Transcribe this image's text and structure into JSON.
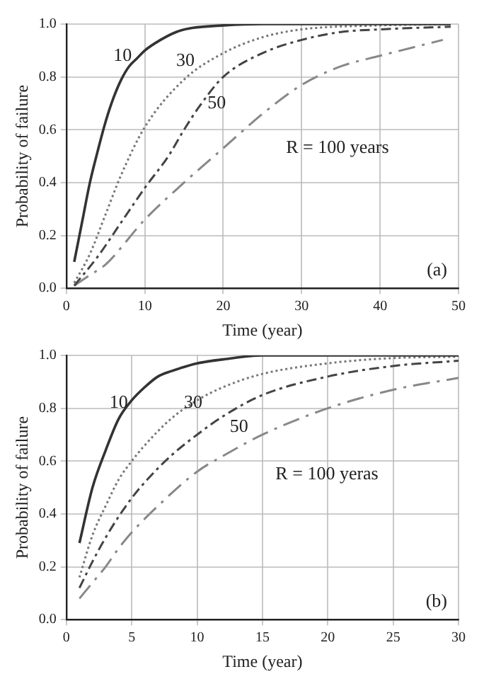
{
  "chart_data": [
    {
      "type": "line",
      "xlabel": "Time (year)",
      "ylabel": "Probability of failure",
      "xlim": [
        0,
        50
      ],
      "ylim": [
        0,
        1
      ],
      "xticks": [
        0,
        10,
        20,
        30,
        40,
        50
      ],
      "yticks": [
        {
          "value": 0,
          "label": "0.0"
        },
        {
          "value": 0.2,
          "label": "0.2"
        },
        {
          "value": 0.4,
          "label": "0.4"
        },
        {
          "value": 0.6,
          "label": "0.6"
        },
        {
          "value": 0.8,
          "label": "0.8"
        },
        {
          "value": 1,
          "label": "1.0"
        }
      ],
      "grid": true,
      "legend": false,
      "marker": "none",
      "annotations": [
        "(a)"
      ],
      "series": [
        {
          "name": "10",
          "color": "#333333",
          "line_style": "solid",
          "x": [
            1,
            2,
            3,
            4,
            5,
            6,
            7,
            8,
            9,
            10,
            12,
            14,
            16,
            20,
            25,
            30,
            49
          ],
          "values": [
            0.1,
            0.25,
            0.4,
            0.52,
            0.63,
            0.72,
            0.79,
            0.84,
            0.87,
            0.9,
            0.94,
            0.97,
            0.985,
            0.995,
            1,
            1,
            1
          ]
        },
        {
          "name": "30",
          "color": "#777777",
          "line_style": "dotted",
          "x": [
            1,
            3,
            5,
            7,
            10,
            15,
            20,
            25,
            30,
            40,
            49
          ],
          "values": [
            0.02,
            0.13,
            0.28,
            0.43,
            0.61,
            0.79,
            0.89,
            0.95,
            0.98,
            0.995,
            1
          ]
        },
        {
          "name": "50",
          "color": "#444444",
          "line_style": "dashed",
          "x": [
            1,
            4,
            7,
            10,
            13,
            15,
            17,
            20,
            25,
            30,
            35,
            40,
            49
          ],
          "values": [
            0.01,
            0.12,
            0.25,
            0.38,
            0.5,
            0.6,
            0.69,
            0.8,
            0.89,
            0.94,
            0.97,
            0.98,
            0.99
          ]
        },
        {
          "name": "R = 100 years",
          "color": "#888888",
          "line_style": "dashed",
          "x": [
            1,
            3,
            5,
            10,
            15,
            20,
            25,
            30,
            35,
            40,
            48
          ],
          "values": [
            0.01,
            0.05,
            0.09,
            0.26,
            0.4,
            0.53,
            0.66,
            0.77,
            0.84,
            0.88,
            0.94
          ]
        }
      ]
    },
    {
      "type": "line",
      "xlabel": "Time (year)",
      "ylabel": "Probability of failure",
      "xlim": [
        0,
        30
      ],
      "ylim": [
        0,
        1
      ],
      "xticks": [
        0,
        5,
        10,
        15,
        20,
        25,
        30
      ],
      "yticks": [
        {
          "value": 0,
          "label": "0.0"
        },
        {
          "value": 0.2,
          "label": "0.2"
        },
        {
          "value": 0.4,
          "label": "0.4"
        },
        {
          "value": 0.6,
          "label": "0.6"
        },
        {
          "value": 0.8,
          "label": "0.8"
        },
        {
          "value": 1,
          "label": "1.0"
        }
      ],
      "grid": true,
      "legend": false,
      "marker": "none",
      "annotations": [
        "(b)"
      ],
      "series": [
        {
          "name": "10",
          "color": "#333333",
          "line_style": "solid",
          "x": [
            1,
            2,
            3,
            4,
            5,
            6,
            7,
            8,
            10,
            12,
            15,
            20,
            30
          ],
          "values": [
            0.29,
            0.5,
            0.64,
            0.76,
            0.83,
            0.88,
            0.92,
            0.94,
            0.97,
            0.985,
            1,
            1,
            1
          ]
        },
        {
          "name": "30",
          "color": "#777777",
          "line_style": "dotted",
          "x": [
            1,
            2,
            3,
            4,
            5,
            6,
            8,
            10,
            12,
            15,
            20,
            25,
            30
          ],
          "values": [
            0.16,
            0.32,
            0.43,
            0.53,
            0.6,
            0.66,
            0.76,
            0.83,
            0.88,
            0.93,
            0.97,
            0.99,
            0.995
          ]
        },
        {
          "name": "50",
          "color": "#444444",
          "line_style": "dashed",
          "x": [
            1,
            2,
            3,
            4,
            5,
            6,
            8,
            10,
            12,
            15,
            20,
            25,
            30
          ],
          "values": [
            0.12,
            0.22,
            0.31,
            0.39,
            0.46,
            0.52,
            0.62,
            0.7,
            0.77,
            0.85,
            0.92,
            0.96,
            0.98
          ]
        },
        {
          "name": "R = 100 yeras",
          "color": "#888888",
          "line_style": "dashed",
          "x": [
            1,
            2,
            3,
            4,
            5,
            7,
            10,
            12,
            15,
            20,
            25,
            30
          ],
          "values": [
            0.08,
            0.14,
            0.2,
            0.27,
            0.33,
            0.43,
            0.56,
            0.62,
            0.7,
            0.8,
            0.87,
            0.915
          ]
        }
      ]
    }
  ]
}
